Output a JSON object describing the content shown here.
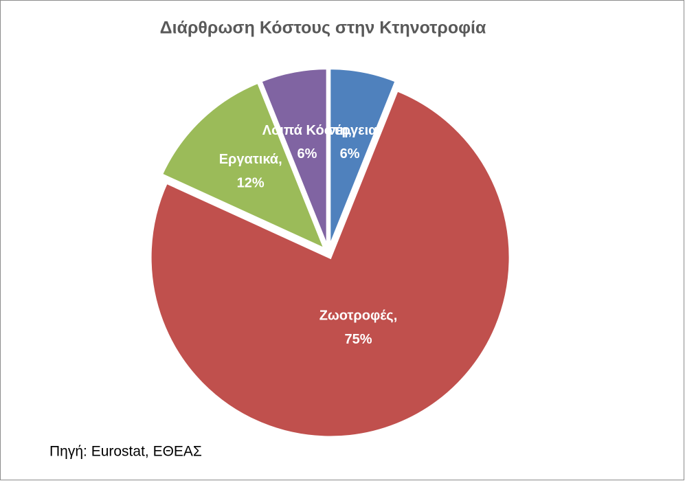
{
  "chart_data": {
    "type": "pie",
    "title": "Διάρθρωση Κόστους στην Κτηνοτροφία",
    "categories": [
      "Ενέργεια",
      "Ζωοτροφές",
      "Εργατικά",
      "Λοιπά Κόστη"
    ],
    "values": [
      6,
      75,
      12,
      6
    ],
    "value_labels": [
      "6%",
      "75%",
      "12%",
      "6%"
    ],
    "label_separator": ",",
    "colors": [
      "#4f81bd",
      "#c0504d",
      "#9bbb59",
      "#8064a2"
    ],
    "source": "Πηγή: Eurostat, ΕΘΕΑΣ"
  }
}
